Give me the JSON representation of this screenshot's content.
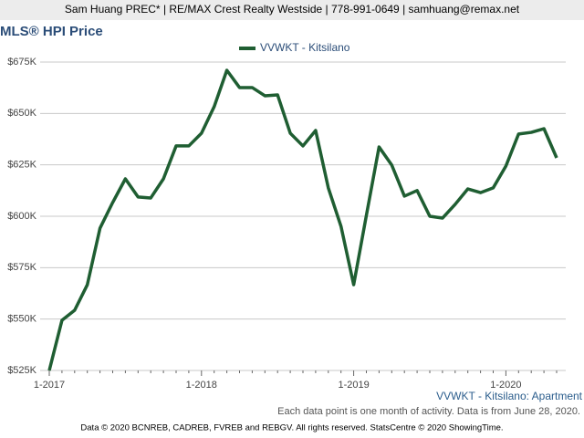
{
  "header": {
    "text": "Sam Huang PREC* | RE/MAX Crest Realty Westside | 778-991-0649 | samhuang@remax.net"
  },
  "chart_data": {
    "type": "line",
    "title": "MLS® HPI Price",
    "categories": [
      "1-2017",
      null,
      null,
      null,
      null,
      null,
      null,
      null,
      null,
      null,
      null,
      null,
      "1-2018",
      null,
      null,
      null,
      null,
      null,
      null,
      null,
      null,
      null,
      null,
      null,
      "1-2019",
      null,
      null,
      null,
      null,
      null,
      null,
      null,
      null,
      null,
      null,
      null,
      "1-2020",
      null,
      null,
      null,
      null
    ],
    "series": [
      {
        "name": "VVWKT - Kitsilano",
        "color": "#1f5e32",
        "values": [
          525000,
          549400,
          554300,
          566700,
          594200,
          606700,
          618200,
          609400,
          608900,
          618200,
          634200,
          634200,
          640400,
          653300,
          671000,
          662600,
          662600,
          658600,
          659000,
          640400,
          634200,
          641700,
          613800,
          595100,
          566700,
          600400,
          633700,
          624900,
          609800,
          612500,
          600000,
          599100,
          605800,
          613300,
          611500,
          613800,
          624400,
          640000,
          640800,
          642600,
          628400
        ]
      }
    ],
    "ylim": [
      525000,
      675000
    ],
    "yticks": [
      {
        "value": 525000,
        "label": "$525K"
      },
      {
        "value": 550000,
        "label": "$550K"
      },
      {
        "value": 575000,
        "label": "$575K"
      },
      {
        "value": 600000,
        "label": "$600K"
      },
      {
        "value": 625000,
        "label": "$625K"
      },
      {
        "value": 650000,
        "label": "$650K"
      },
      {
        "value": 675000,
        "label": "$675K"
      }
    ],
    "grid": true,
    "subtitle": "VVWKT - Kitsilano: Apartment",
    "note": "Each data point is one month of activity. Data is from June 28, 2020."
  },
  "footer": {
    "text": "Data © 2020 BCNREB, CADREB, FVREB and REBGV. All rights reserved. StatsCentre © 2020 ShowingTime."
  }
}
